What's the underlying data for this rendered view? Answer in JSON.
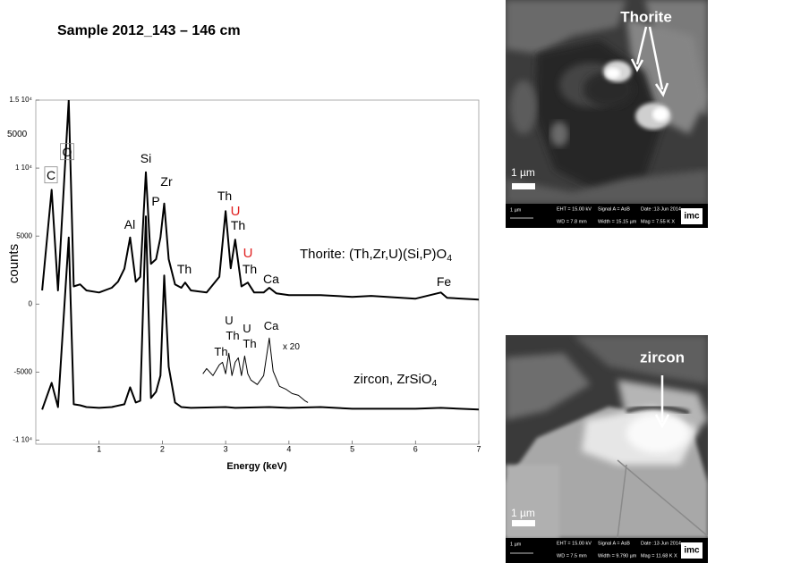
{
  "chart_data": {
    "type": "line",
    "title": "Sample 2012_143 – 146 cm",
    "xlabel": "Energy (keV)",
    "ylabel": "counts",
    "xlim": [
      0,
      7
    ],
    "xticks": [
      1,
      2,
      3,
      4,
      5,
      6,
      7
    ],
    "ylim": [
      -10300,
      15000
    ],
    "yticks": [
      {
        "value": 15000,
        "label": "1.5 10⁴"
      },
      {
        "value": 10000,
        "label": "1 10⁴"
      },
      5000,
      0,
      -5000,
      {
        "value": -10000,
        "label": "-1 10⁴"
      }
    ],
    "series": [
      {
        "name": "Thorite",
        "color": "#000000",
        "x": [
          0.1,
          0.25,
          0.35,
          0.52,
          0.6,
          0.7,
          0.8,
          1.0,
          1.2,
          1.3,
          1.4,
          1.49,
          1.58,
          1.65,
          1.74,
          1.82,
          1.9,
          1.97,
          2.03,
          2.1,
          2.2,
          2.3,
          2.36,
          2.45,
          2.7,
          2.9,
          3.0,
          3.08,
          3.15,
          3.25,
          3.35,
          3.45,
          3.6,
          3.69,
          3.8,
          4.0,
          4.5,
          5.0,
          5.3,
          6.0,
          6.4,
          6.5,
          7.0
        ],
        "values": [
          1000,
          8400,
          1000,
          15000,
          1300,
          1450,
          1000,
          850,
          1200,
          1650,
          2600,
          4900,
          1650,
          2000,
          9700,
          2960,
          3300,
          4900,
          7400,
          3300,
          1450,
          1200,
          1580,
          1000,
          850,
          2000,
          6840,
          2630,
          4740,
          1300,
          1580,
          850,
          850,
          1200,
          790,
          660,
          660,
          530,
          600,
          400,
          850,
          460,
          330
        ]
      },
      {
        "name": "zircon",
        "color": "#000000",
        "x": [
          0.1,
          0.25,
          0.35,
          0.52,
          0.6,
          0.7,
          0.8,
          1.0,
          1.2,
          1.4,
          1.49,
          1.58,
          1.65,
          1.74,
          1.82,
          1.9,
          1.97,
          2.03,
          2.1,
          2.2,
          2.3,
          2.45,
          3.0,
          3.15,
          3.69,
          4.0,
          4.5,
          5.0,
          6.0,
          6.4,
          7.0
        ],
        "values": [
          -7760,
          -5790,
          -7570,
          4900,
          -7370,
          -7440,
          -7570,
          -7630,
          -7570,
          -7370,
          -6120,
          -7240,
          -7110,
          6450,
          -6910,
          -6450,
          -5260,
          2100,
          -4600,
          -7240,
          -7570,
          -7630,
          -7570,
          -7630,
          -7570,
          -7630,
          -7570,
          -7700,
          -7700,
          -7630,
          -7760
        ]
      },
      {
        "name": "x 20",
        "color": "#000000",
        "x": [
          2.64,
          2.7,
          2.8,
          2.9,
          2.95,
          3.0,
          3.05,
          3.1,
          3.15,
          3.2,
          3.25,
          3.3,
          3.35,
          3.4,
          3.5,
          3.6,
          3.69,
          3.75,
          3.85,
          3.95,
          4.05,
          4.15,
          4.25,
          4.3
        ],
        "values": [
          -5130,
          -4740,
          -5260,
          -4470,
          -4280,
          -5130,
          -3620,
          -5260,
          -4280,
          -3950,
          -5260,
          -3820,
          -5130,
          -5590,
          -5920,
          -5260,
          -2500,
          -4930,
          -6050,
          -6250,
          -6580,
          -6710,
          -7100,
          -7240
        ]
      }
    ],
    "annotations": [
      {
        "text": "C",
        "boxed": true
      },
      {
        "text": "O",
        "boxed": true
      },
      {
        "text": "Si"
      },
      {
        "text": "Al"
      },
      {
        "text": "P"
      },
      {
        "text": "Zr"
      },
      {
        "text": "Th"
      },
      {
        "text": "U",
        "color": "#e02020"
      },
      {
        "text": "Th"
      },
      {
        "text": "U",
        "color": "#e02020"
      },
      {
        "text": "Th"
      },
      {
        "text": "Ca"
      },
      {
        "text": "Th"
      },
      {
        "text": "Fe"
      },
      {
        "text": "Thorite: (Th,Zr,U)(Si,P)O",
        "subscript": "4"
      },
      {
        "text": "U"
      },
      {
        "text": "Th"
      },
      {
        "text": "U"
      },
      {
        "text": "Th"
      },
      {
        "text": "Th"
      },
      {
        "text": "Ca"
      },
      {
        "text": "x 20"
      },
      {
        "text": "zircon, ZrSiO",
        "subscript": "4"
      },
      {
        "text": "5000"
      }
    ]
  },
  "images": [
    {
      "label": "Thorite",
      "scale": "1 µm",
      "info": [
        "1 µm",
        "EHT = 15.00 kV",
        "WD = 7.8 mm",
        "Signal A = AsB",
        "Width = 15.15 µm",
        "Date :13 Jun 2014",
        "Mag =  7.55 K X"
      ]
    },
    {
      "label": "zircon",
      "scale": "1 µm",
      "info": [
        "1 µm",
        "EHT = 15.00 kV",
        "WD = 7.5 mm",
        "Signal A = AsB",
        "Width = 9.790 µm",
        "Date :13 Jun 2014",
        "Mag = 11.68 K X"
      ]
    }
  ]
}
